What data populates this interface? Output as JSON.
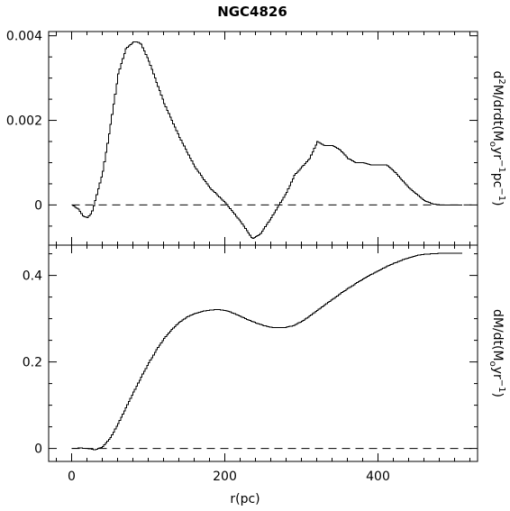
{
  "chart_data": {
    "type": "line",
    "title": "NGC4826",
    "xlabel": "r(pc)",
    "xlim": [
      -30,
      530
    ],
    "x_ticks": [
      "0",
      "200",
      "400"
    ],
    "panels": [
      {
        "ylabel_parts": [
          "d",
          "2",
          "M/drdt(M",
          "o",
          "yr",
          "−1",
          "pc",
          "−1",
          ")"
        ],
        "ylim": [
          -0.00095,
          0.0041
        ],
        "y_ticks": [
          "0",
          "0.002",
          "0.004"
        ],
        "zero_line": true,
        "series": [
          {
            "x": [
              0,
              8,
              15,
              20,
              25,
              30,
              40,
              50,
              60,
              70,
              80,
              85,
              90,
              100,
              120,
              140,
              160,
              180,
              200,
              220,
              235,
              245,
              260,
              280,
              290,
              300,
              310,
              320,
              330,
              340,
              350,
              360,
              370,
              380,
              390,
              400,
              410,
              420,
              430,
              440,
              450,
              460,
              470,
              480,
              490,
              500,
              510
            ],
            "y": [
              0,
              -0.0001,
              -0.00028,
              -0.0003,
              -0.0002,
              0.0001,
              0.0008,
              0.0019,
              0.0031,
              0.0037,
              0.00385,
              0.00385,
              0.0038,
              0.0034,
              0.0024,
              0.0016,
              0.0009,
              0.0004,
              5e-05,
              -0.0004,
              -0.0008,
              -0.0007,
              -0.0003,
              0.0003,
              0.0007,
              0.0009,
              0.0011,
              0.0015,
              0.0014,
              0.0014,
              0.0013,
              0.0011,
              0.001,
              0.001,
              0.00095,
              0.00095,
              0.00095,
              0.0008,
              0.0006,
              0.0004,
              0.00025,
              0.0001,
              3e-05,
              0.0,
              0.0,
              0.0,
              0.0
            ]
          }
        ]
      },
      {
        "ylabel_parts": [
          "dM/dt(M",
          "o",
          "yr",
          "−1",
          ")"
        ],
        "ylim": [
          -0.03,
          0.47
        ],
        "y_ticks": [
          "0",
          "0.2",
          "0.4"
        ],
        "zero_line": true,
        "series": [
          {
            "x": [
              0,
              10,
              20,
              30,
              40,
              50,
              60,
              70,
              80,
              90,
              100,
              110,
              120,
              130,
              140,
              150,
              160,
              170,
              180,
              190,
              200,
              210,
              220,
              230,
              240,
              250,
              260,
              270,
              280,
              290,
              300,
              310,
              320,
              330,
              340,
              350,
              360,
              370,
              380,
              390,
              400,
              410,
              420,
              430,
              440,
              450,
              460,
              470,
              480,
              490,
              500,
              510
            ],
            "y": [
              0,
              0.001,
              0.0,
              -0.003,
              0.004,
              0.025,
              0.058,
              0.094,
              0.13,
              0.165,
              0.198,
              0.228,
              0.254,
              0.275,
              0.292,
              0.304,
              0.312,
              0.317,
              0.32,
              0.321,
              0.319,
              0.313,
              0.305,
              0.297,
              0.29,
              0.284,
              0.28,
              0.279,
              0.28,
              0.285,
              0.294,
              0.306,
              0.319,
              0.332,
              0.345,
              0.358,
              0.37,
              0.381,
              0.392,
              0.402,
              0.411,
              0.42,
              0.428,
              0.435,
              0.441,
              0.446,
              0.449,
              0.45,
              0.451,
              0.451,
              0.451,
              0.451
            ]
          }
        ]
      }
    ]
  }
}
